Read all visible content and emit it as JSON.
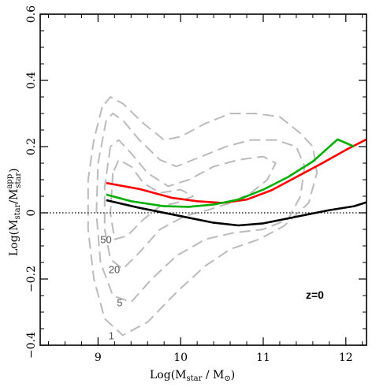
{
  "chart_data": {
    "type": "line",
    "xlabel_main": "Log(M",
    "xlabel_sub": "star",
    "xlabel_tail": " / M",
    "xlabel_sun": "⊙",
    "xlabel_close": ")",
    "ylabel_main": "Log(M",
    "ylabel_sub1": "star",
    "ylabel_mid": "/M",
    "ylabel_sup": "app",
    "ylabel_sub2": "star",
    "ylabel_close": ")",
    "xlim": [
      8.3,
      12.25
    ],
    "ylim": [
      -0.4,
      0.6
    ],
    "xticks": [
      {
        "v": 9,
        "label": "9"
      },
      {
        "v": 10,
        "label": "10"
      },
      {
        "v": 11,
        "label": "11"
      },
      {
        "v": 12,
        "label": "12"
      }
    ],
    "yticks": [
      {
        "v": -0.4,
        "label": "−0.4"
      },
      {
        "v": -0.2,
        "label": "−0.2"
      },
      {
        "v": 0,
        "label": "0"
      },
      {
        "v": 0.2,
        "label": "0.2"
      },
      {
        "v": 0.4,
        "label": "0.4"
      },
      {
        "v": 0.6,
        "label": "0.6"
      }
    ],
    "annotation": "z=0",
    "reference_line": {
      "y": 0,
      "style": "dotted",
      "color": "#000000"
    },
    "series": [
      {
        "color": "#000000",
        "x": [
          9.1,
          9.5,
          10.0,
          10.4,
          10.7,
          11.0,
          11.4,
          11.8,
          12.1,
          12.25
        ],
        "y": [
          0.038,
          0.015,
          -0.01,
          -0.03,
          -0.038,
          -0.032,
          -0.012,
          0.008,
          0.02,
          0.032
        ]
      },
      {
        "color": "#ff0000",
        "x": [
          9.1,
          9.5,
          9.9,
          10.2,
          10.5,
          10.8,
          11.1,
          11.4,
          11.7,
          12.0,
          12.25
        ],
        "y": [
          0.09,
          0.072,
          0.045,
          0.035,
          0.03,
          0.04,
          0.068,
          0.108,
          0.148,
          0.19,
          0.222
        ]
      },
      {
        "color": "#00b000",
        "x": [
          9.1,
          9.4,
          9.8,
          10.1,
          10.4,
          10.7,
          11.0,
          11.3,
          11.6,
          11.9,
          12.1
        ],
        "y": [
          0.055,
          0.035,
          0.02,
          0.018,
          0.025,
          0.04,
          0.07,
          0.108,
          0.155,
          0.222,
          0.2
        ]
      }
    ],
    "contours": [
      {
        "label": "1",
        "color": "#bbbbbb",
        "x": [
          9.05,
          8.95,
          8.88,
          8.88,
          8.95,
          9.08,
          9.3,
          9.6,
          9.95,
          10.3,
          10.6,
          10.95,
          11.25,
          11.55,
          11.65,
          11.6,
          11.45,
          11.2,
          10.9,
          10.6,
          10.3,
          10.0,
          9.8,
          9.55,
          9.3,
          9.15,
          9.05
        ],
        "y": [
          0.32,
          0.22,
          0.1,
          -0.05,
          -0.2,
          -0.32,
          -0.37,
          -0.33,
          -0.24,
          -0.16,
          -0.11,
          -0.08,
          -0.04,
          0.03,
          0.12,
          0.2,
          0.24,
          0.29,
          0.3,
          0.3,
          0.27,
          0.23,
          0.22,
          0.27,
          0.33,
          0.35,
          0.32
        ]
      },
      {
        "label": "5",
        "color": "#bbbbbb",
        "x": [
          9.1,
          9.0,
          8.98,
          9.03,
          9.18,
          9.4,
          9.65,
          9.95,
          10.3,
          10.65,
          11.0,
          11.3,
          11.45,
          11.5,
          11.4,
          11.15,
          10.85,
          10.55,
          10.25,
          9.95,
          9.75,
          9.5,
          9.3,
          9.18,
          9.1
        ],
        "y": [
          0.28,
          0.15,
          0.0,
          -0.15,
          -0.25,
          -0.27,
          -0.2,
          -0.13,
          -0.08,
          -0.06,
          -0.05,
          -0.02,
          0.05,
          0.14,
          0.2,
          0.22,
          0.22,
          0.2,
          0.17,
          0.14,
          0.16,
          0.22,
          0.28,
          0.3,
          0.28
        ]
      },
      {
        "label": "20",
        "color": "#bbbbbb",
        "x": [
          9.15,
          9.08,
          9.08,
          9.15,
          9.3,
          9.5,
          9.75,
          10.05,
          10.35,
          10.6,
          10.85,
          11.05,
          11.15,
          11.0,
          10.7,
          10.4,
          10.1,
          9.85,
          9.6,
          9.4,
          9.25,
          9.15
        ],
        "y": [
          0.2,
          0.08,
          -0.05,
          -0.14,
          -0.17,
          -0.12,
          -0.05,
          -0.01,
          0.01,
          0.03,
          0.06,
          0.1,
          0.15,
          0.17,
          0.16,
          0.14,
          0.1,
          0.08,
          0.12,
          0.18,
          0.22,
          0.2
        ]
      },
      {
        "label": "50",
        "color": "#bbbbbb",
        "x": [
          9.18,
          9.15,
          9.2,
          9.35,
          9.55,
          9.75,
          9.95,
          10.15,
          10.0,
          9.75,
          9.55,
          9.4,
          9.25,
          9.18
        ],
        "y": [
          0.12,
          0.0,
          -0.08,
          -0.07,
          -0.02,
          0.02,
          0.03,
          0.05,
          0.07,
          0.06,
          0.09,
          0.14,
          0.16,
          0.12
        ]
      }
    ]
  }
}
